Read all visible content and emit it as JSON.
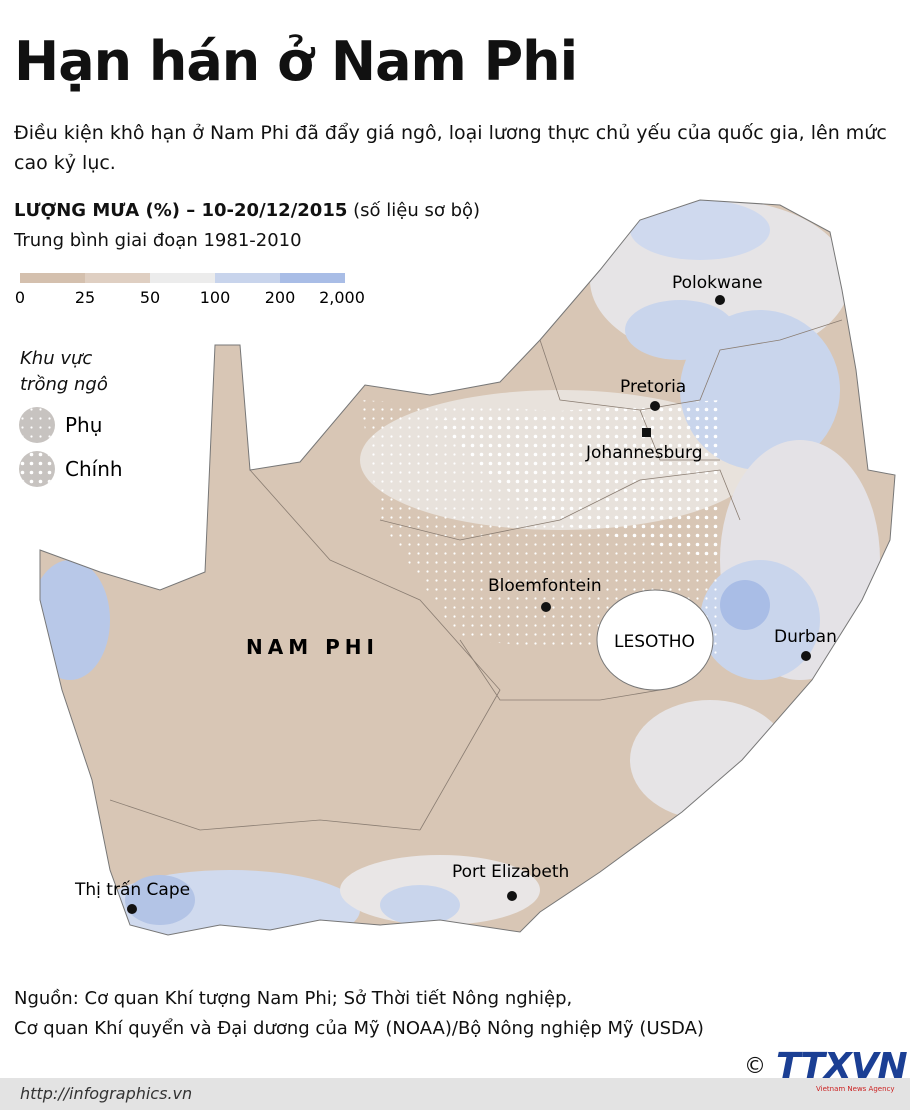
{
  "header": {
    "title": "Hạn hán ở Nam Phi",
    "subtitle": "Điều kiện khô hạn ở Nam Phi đã đẩy giá ngô, loại lương thực chủ yếu của quốc gia, lên mức cao kỷ lục."
  },
  "legend": {
    "title": "LƯỢNG MƯA (%) – 10-20/12/2015",
    "note": "(số liệu sơ bộ)",
    "baseline": "Trung bình giai đoạn 1981-2010",
    "ticks": [
      "0",
      "25",
      "50",
      "100",
      "200",
      "2,000"
    ],
    "maize": {
      "title": "Khu vực trồng ngô",
      "items": [
        "Phụ",
        "Chính"
      ]
    }
  },
  "map": {
    "country": "NAM PHI",
    "neighbor": "LESOTHO",
    "cities": [
      "Polokwane",
      "Pretoria",
      "Johannesburg",
      "Bloemfontein",
      "Durban",
      "Port Elizabeth",
      "Thị trấn Cape"
    ]
  },
  "footer": {
    "source": [
      "Nguồn: Cơ quan Khí tượng Nam Phi; Sở Thời tiết Nông nghiệp,",
      "Cơ quan Khí quyển và Đại dương của Mỹ (NOAA)/Bộ Nông nghiệp Mỹ (USDA)"
    ],
    "url": "http://infographics.vn",
    "copyright": "©",
    "logo": "TTXVN",
    "logo_sub": "Vietnam News Agency"
  }
}
